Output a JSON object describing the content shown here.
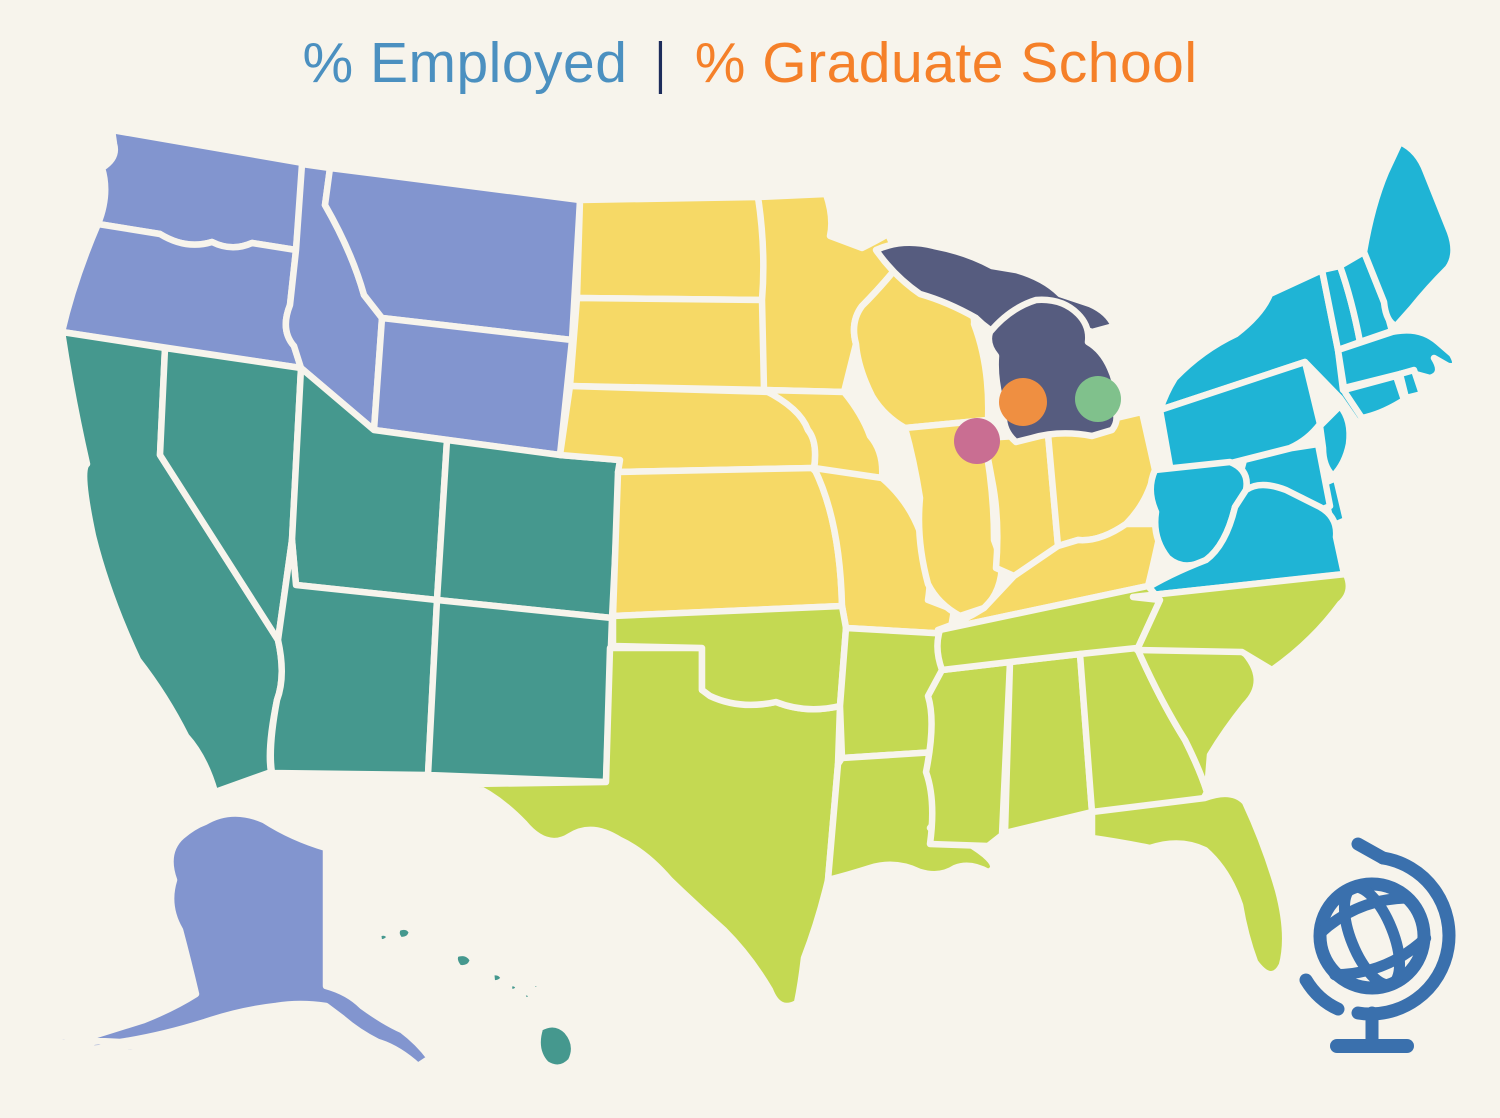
{
  "title": {
    "employed_label": "% Employed",
    "separator": "|",
    "graduate_label": "% Graduate School",
    "employed_color": "#4b90c0",
    "separator_color": "#1d2c5b",
    "graduate_color": "#f58029"
  },
  "map": {
    "background_color": "#f7f4ec",
    "state_border_color": "#f7f4ec",
    "regions": [
      {
        "id": "pacific-northwest",
        "color": "#8295cf",
        "states": [
          "WA",
          "OR",
          "ID",
          "MT",
          "WY",
          "AK"
        ]
      },
      {
        "id": "west-southwest",
        "color": "#45988e",
        "states": [
          "CA",
          "NV",
          "UT",
          "AZ",
          "CO",
          "NM",
          "HI"
        ]
      },
      {
        "id": "midwest-plains",
        "color": "#f6d966",
        "states": [
          "ND",
          "SD",
          "NE",
          "KS",
          "MN",
          "IA",
          "MO",
          "WI",
          "IL",
          "IN",
          "OH",
          "KY"
        ]
      },
      {
        "id": "michigan-highlight",
        "color": "#565c7f",
        "states": [
          "MI_UP",
          "MI_LP"
        ]
      },
      {
        "id": "northeast-midatlantic",
        "color": "#1fb4d5",
        "states": [
          "NY",
          "PA",
          "NJ",
          "DE",
          "MD",
          "WV",
          "VA",
          "VT",
          "NH",
          "MA",
          "CT",
          "RI",
          "ME"
        ]
      },
      {
        "id": "south",
        "color": "#c4d952",
        "states": [
          "TX",
          "OK",
          "AR",
          "LA",
          "MS",
          "AL",
          "TN",
          "GA",
          "FL",
          "SC",
          "NC"
        ]
      }
    ],
    "markers": [
      {
        "id": "marker-pink",
        "color": "#c96e92"
      },
      {
        "id": "marker-orange",
        "color": "#ef8f41"
      },
      {
        "id": "marker-green",
        "color": "#80c18c"
      }
    ],
    "globe_icon_color": "#3a70ad"
  }
}
